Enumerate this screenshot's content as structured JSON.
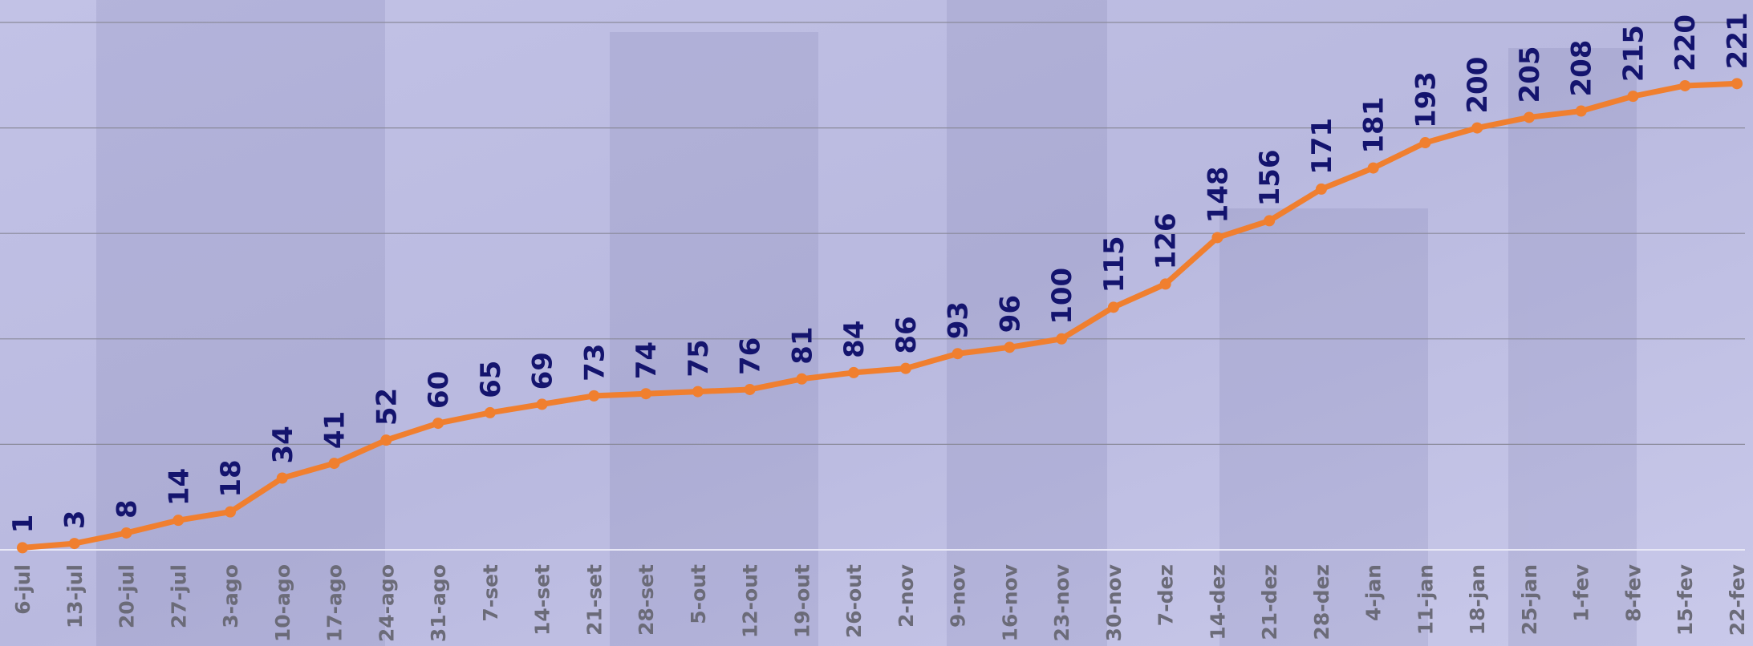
{
  "chart_data": {
    "type": "line",
    "categories": [
      "6-jul",
      "13-jul",
      "20-jul",
      "27-jul",
      "3-ago",
      "10-ago",
      "17-ago",
      "24-ago",
      "31-ago",
      "7-set",
      "14-set",
      "21-set",
      "28-set",
      "5-out",
      "12-out",
      "19-out",
      "26-out",
      "2-nov",
      "9-nov",
      "16-nov",
      "23-nov",
      "30-nov",
      "7-dez",
      "14-dez",
      "21-dez",
      "28-dez",
      "4-jan",
      "11-jan",
      "18-jan",
      "25-jan",
      "1-fev",
      "8-fev",
      "15-fev",
      "22-fev"
    ],
    "values": [
      1,
      3,
      8,
      14,
      18,
      34,
      41,
      52,
      60,
      65,
      69,
      73,
      74,
      75,
      76,
      81,
      84,
      86,
      93,
      96,
      100,
      115,
      126,
      148,
      156,
      171,
      181,
      193,
      200,
      205,
      208,
      215,
      220,
      221
    ],
    "color": "#f07f2f",
    "ylim": [
      0,
      250
    ],
    "yticks": [
      0,
      50,
      100,
      150,
      200,
      250
    ],
    "grid": true
  }
}
